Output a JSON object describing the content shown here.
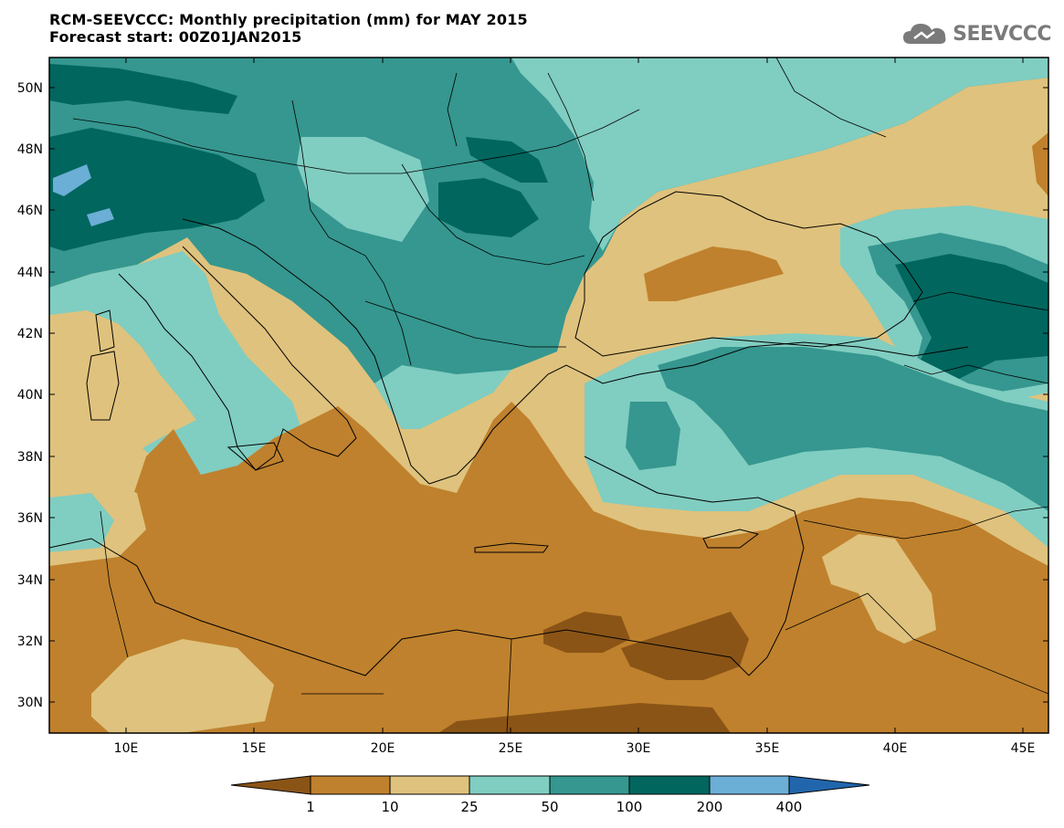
{
  "header": {
    "title": "RCM-SEEVCCC: Monthly precipitation (mm) for MAY 2015",
    "subtitle": "Forecast start: 00Z01JAN2015",
    "logo_text": "SEEVCCC",
    "logo_icon": "cloud-icon"
  },
  "map": {
    "projection": "lat-lon",
    "lon_range": [
      7,
      46
    ],
    "lat_range": [
      29,
      51
    ],
    "lat_ticks": [
      "50N",
      "48N",
      "46N",
      "44N",
      "42N",
      "40N",
      "38N",
      "36N",
      "34N",
      "32N",
      "30N"
    ],
    "lon_ticks": [
      "10E",
      "15E",
      "20E",
      "25E",
      "30E",
      "35E",
      "40E",
      "45E"
    ],
    "coastlines": true,
    "borders": true
  },
  "legend": {
    "type": "colorbar",
    "levels": [
      "1",
      "10",
      "25",
      "50",
      "100",
      "200",
      "400"
    ],
    "colors": [
      "#8a5416",
      "#bf812d",
      "#dfc27d",
      "#80cdc1",
      "#35978f",
      "#01665e",
      "#6baed6",
      "#2166ac"
    ],
    "extend": "both"
  }
}
